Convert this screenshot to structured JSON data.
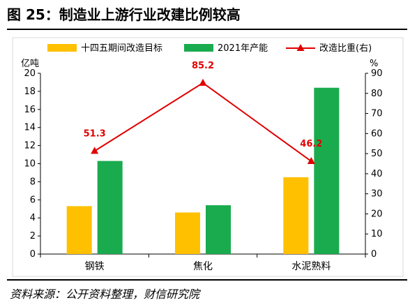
{
  "header": {
    "title": "图 25：制造业上游行业改建比例较高"
  },
  "footer": {
    "source": "资料来源：公开资料整理，财信研究院"
  },
  "chart_data": {
    "type": "bar",
    "categories": [
      "钢铁",
      "焦化",
      "水泥熟料"
    ],
    "series": [
      {
        "name": "十四五期间改造目标",
        "kind": "bar",
        "axis": "left",
        "color": "#FFC000",
        "values": [
          5.3,
          4.6,
          8.5
        ]
      },
      {
        "name": "2021年产能",
        "kind": "bar",
        "axis": "left",
        "color": "#1AAB4E",
        "values": [
          10.3,
          5.4,
          18.4
        ]
      },
      {
        "name": "改造比重(右)",
        "kind": "line",
        "axis": "right",
        "color": "#E00000",
        "values": [
          51.3,
          85.2,
          46.2
        ],
        "labels": [
          "51.3",
          "85.2",
          "46.2"
        ]
      }
    ],
    "y_left": {
      "label": "亿吨",
      "min": 0,
      "max": 20,
      "step": 2
    },
    "y_right": {
      "label": "%",
      "min": 0,
      "max": 90,
      "step": 10
    },
    "legend_position": "top",
    "grid": false
  }
}
